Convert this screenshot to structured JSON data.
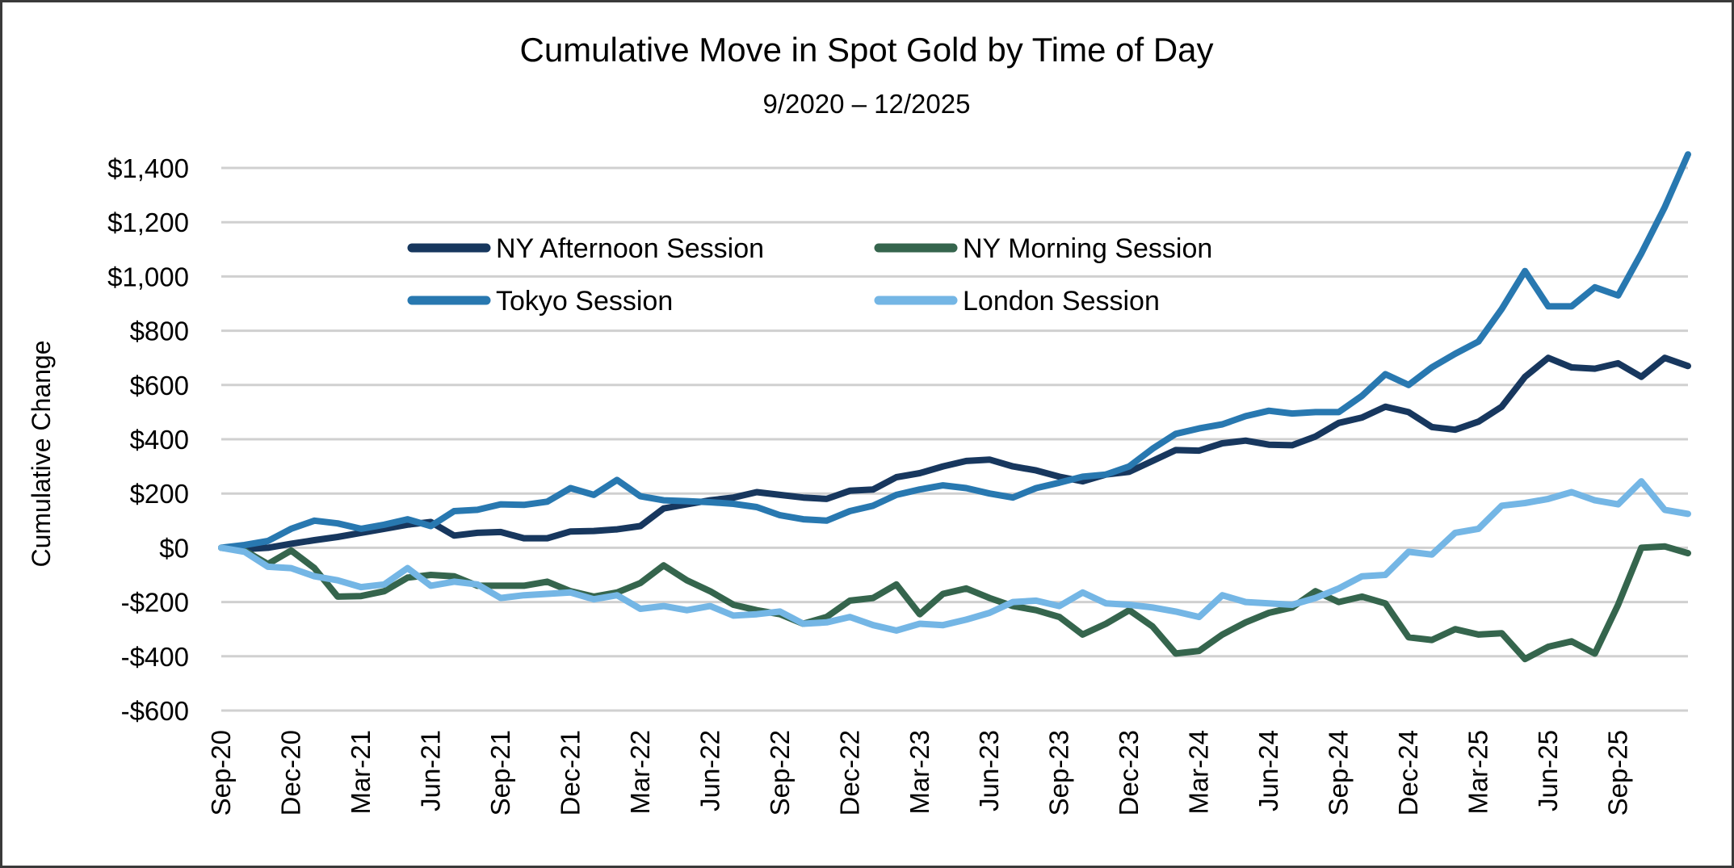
{
  "chart_data": {
    "type": "line",
    "title": "Cumulative Move in Spot Gold by Time of Day",
    "subtitle": "9/2020 – 12/2025",
    "xlabel": "",
    "ylabel": "Cumulative Change",
    "ylim": [
      -600,
      1400
    ],
    "yticks": [
      -600,
      -400,
      -200,
      0,
      200,
      400,
      600,
      800,
      1000,
      1200,
      1400
    ],
    "ytick_labels": [
      "-$600",
      "-$400",
      "-$200",
      "$0",
      "$200",
      "$400",
      "$600",
      "$800",
      "$1,000",
      "$1,200",
      "$1,400"
    ],
    "grid": true,
    "legend_placement": "top-center",
    "x": [
      "Sep-20",
      "Oct-20",
      "Nov-20",
      "Dec-20",
      "Jan-21",
      "Feb-21",
      "Mar-21",
      "Apr-21",
      "May-21",
      "Jun-21",
      "Jul-21",
      "Aug-21",
      "Sep-21",
      "Oct-21",
      "Nov-21",
      "Dec-21",
      "Jan-22",
      "Feb-22",
      "Mar-22",
      "Apr-22",
      "May-22",
      "Jun-22",
      "Jul-22",
      "Aug-22",
      "Sep-22",
      "Oct-22",
      "Nov-22",
      "Dec-22",
      "Jan-23",
      "Feb-23",
      "Mar-23",
      "Apr-23",
      "May-23",
      "Jun-23",
      "Jul-23",
      "Aug-23",
      "Sep-23",
      "Oct-23",
      "Nov-23",
      "Dec-23",
      "Jan-24",
      "Feb-24",
      "Mar-24",
      "Apr-24",
      "May-24",
      "Jun-24",
      "Jul-24",
      "Aug-24",
      "Sep-24",
      "Oct-24",
      "Nov-24",
      "Dec-24",
      "Jan-25",
      "Feb-25",
      "Mar-25",
      "Apr-25",
      "May-25",
      "Jun-25",
      "Jul-25",
      "Aug-25",
      "Sep-25",
      "Oct-25",
      "Nov-25",
      "Dec-25"
    ],
    "xtick_labels": [
      "Sep-20",
      "Dec-20",
      "Mar-21",
      "Jun-21",
      "Sep-21",
      "Dec-21",
      "Mar-22",
      "Jun-22",
      "Sep-22",
      "Dec-22",
      "Mar-23",
      "Jun-23",
      "Sep-23",
      "Dec-23",
      "Mar-24",
      "Jun-24",
      "Sep-24",
      "Dec-24",
      "Mar-25",
      "Jun-25",
      "Sep-25"
    ],
    "series": [
      {
        "name": "NY Afternoon Session",
        "color": "#17375e",
        "values": [
          0,
          -5,
          0,
          15,
          28,
          40,
          55,
          70,
          85,
          95,
          45,
          55,
          58,
          35,
          35,
          60,
          62,
          68,
          80,
          145,
          160,
          175,
          185,
          205,
          195,
          185,
          180,
          210,
          215,
          260,
          275,
          300,
          320,
          325,
          300,
          285,
          262,
          245,
          270,
          280,
          320,
          360,
          358,
          385,
          395,
          380,
          378,
          410,
          460,
          480,
          520,
          500,
          445,
          435,
          465,
          520,
          630,
          700,
          665,
          660,
          680,
          630,
          700,
          670
        ]
      },
      {
        "name": "NY Morning Session",
        "color": "#35654d",
        "values": [
          0,
          -10,
          -60,
          -10,
          -75,
          -180,
          -178,
          -160,
          -110,
          -100,
          -105,
          -140,
          -140,
          -140,
          -125,
          -160,
          -180,
          -165,
          -130,
          -65,
          -120,
          -160,
          -210,
          -230,
          -245,
          -280,
          -255,
          -195,
          -185,
          -135,
          -245,
          -170,
          -150,
          -185,
          -215,
          -230,
          -255,
          -320,
          -280,
          -230,
          -290,
          -390,
          -380,
          -320,
          -275,
          -240,
          -220,
          -160,
          -200,
          -180,
          -205,
          -330,
          -340,
          -300,
          -320,
          -315,
          -410,
          -365,
          -345,
          -390,
          -210,
          0,
          5,
          -20
        ]
      },
      {
        "name": "Tokyo Session",
        "color": "#2878b0",
        "values": [
          0,
          10,
          25,
          70,
          100,
          90,
          70,
          85,
          105,
          80,
          135,
          140,
          160,
          158,
          170,
          220,
          195,
          250,
          190,
          175,
          172,
          168,
          162,
          150,
          120,
          105,
          100,
          135,
          155,
          195,
          215,
          230,
          220,
          200,
          185,
          220,
          240,
          262,
          270,
          300,
          365,
          420,
          440,
          455,
          485,
          505,
          495,
          500,
          500,
          560,
          640,
          600,
          665,
          715,
          760,
          880,
          1020,
          890,
          890,
          960,
          930,
          1085,
          1255,
          1450
        ]
      },
      {
        "name": "London Session",
        "color": "#74b6e5",
        "values": [
          0,
          -15,
          -70,
          -75,
          -105,
          -120,
          -145,
          -135,
          -75,
          -140,
          -125,
          -135,
          -185,
          -175,
          -170,
          -165,
          -190,
          -175,
          -225,
          -215,
          -230,
          -215,
          -250,
          -245,
          -235,
          -280,
          -275,
          -255,
          -285,
          -305,
          -280,
          -285,
          -265,
          -240,
          -200,
          -195,
          -215,
          -165,
          -205,
          -210,
          -220,
          -235,
          -255,
          -175,
          -200,
          -205,
          -210,
          -185,
          -150,
          -105,
          -100,
          -15,
          -25,
          55,
          70,
          155,
          165,
          180,
          205,
          175,
          160,
          245,
          140,
          125
        ]
      }
    ],
    "gridline_color": "#d0d0d0"
  }
}
